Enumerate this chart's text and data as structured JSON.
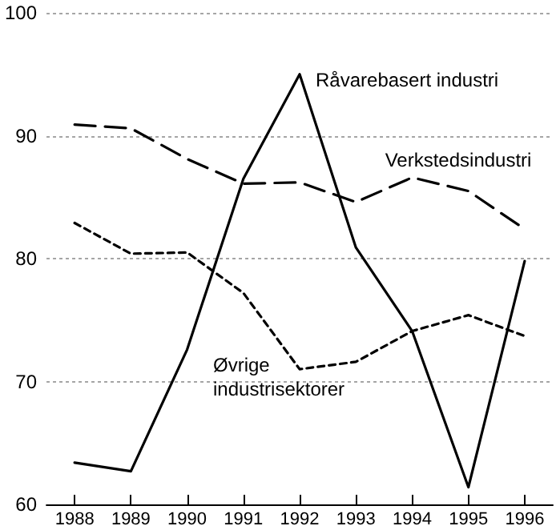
{
  "chart_data": {
    "type": "line",
    "categories": [
      "1988",
      "1989",
      "1990",
      "1991",
      "1992",
      "1993",
      "1994",
      "1995",
      "1996"
    ],
    "series": [
      {
        "name": "Råvarebasert industri",
        "color": "#000000",
        "line_style": "solid",
        "values": [
          63.4,
          62.7,
          72.6,
          86.5,
          95.0,
          80.9,
          74.1,
          61.4,
          79.8
        ]
      },
      {
        "name": "Verkstedsindustri",
        "color": "#000000",
        "line_style": "dashed",
        "values": [
          90.9,
          90.6,
          88.1,
          86.1,
          86.2,
          84.6,
          86.6,
          85.5,
          82.4
        ]
      },
      {
        "name": "Øvrige industrisektorer",
        "color": "#000000",
        "line_style": "dotted",
        "values": [
          82.9,
          80.4,
          80.5,
          77.2,
          71.0,
          71.6,
          74.1,
          75.4,
          73.7
        ]
      }
    ],
    "ylim": [
      60,
      100
    ],
    "yticks": [
      60,
      70,
      80,
      90,
      100
    ],
    "grid": "y",
    "legend": false,
    "marker": "none"
  }
}
